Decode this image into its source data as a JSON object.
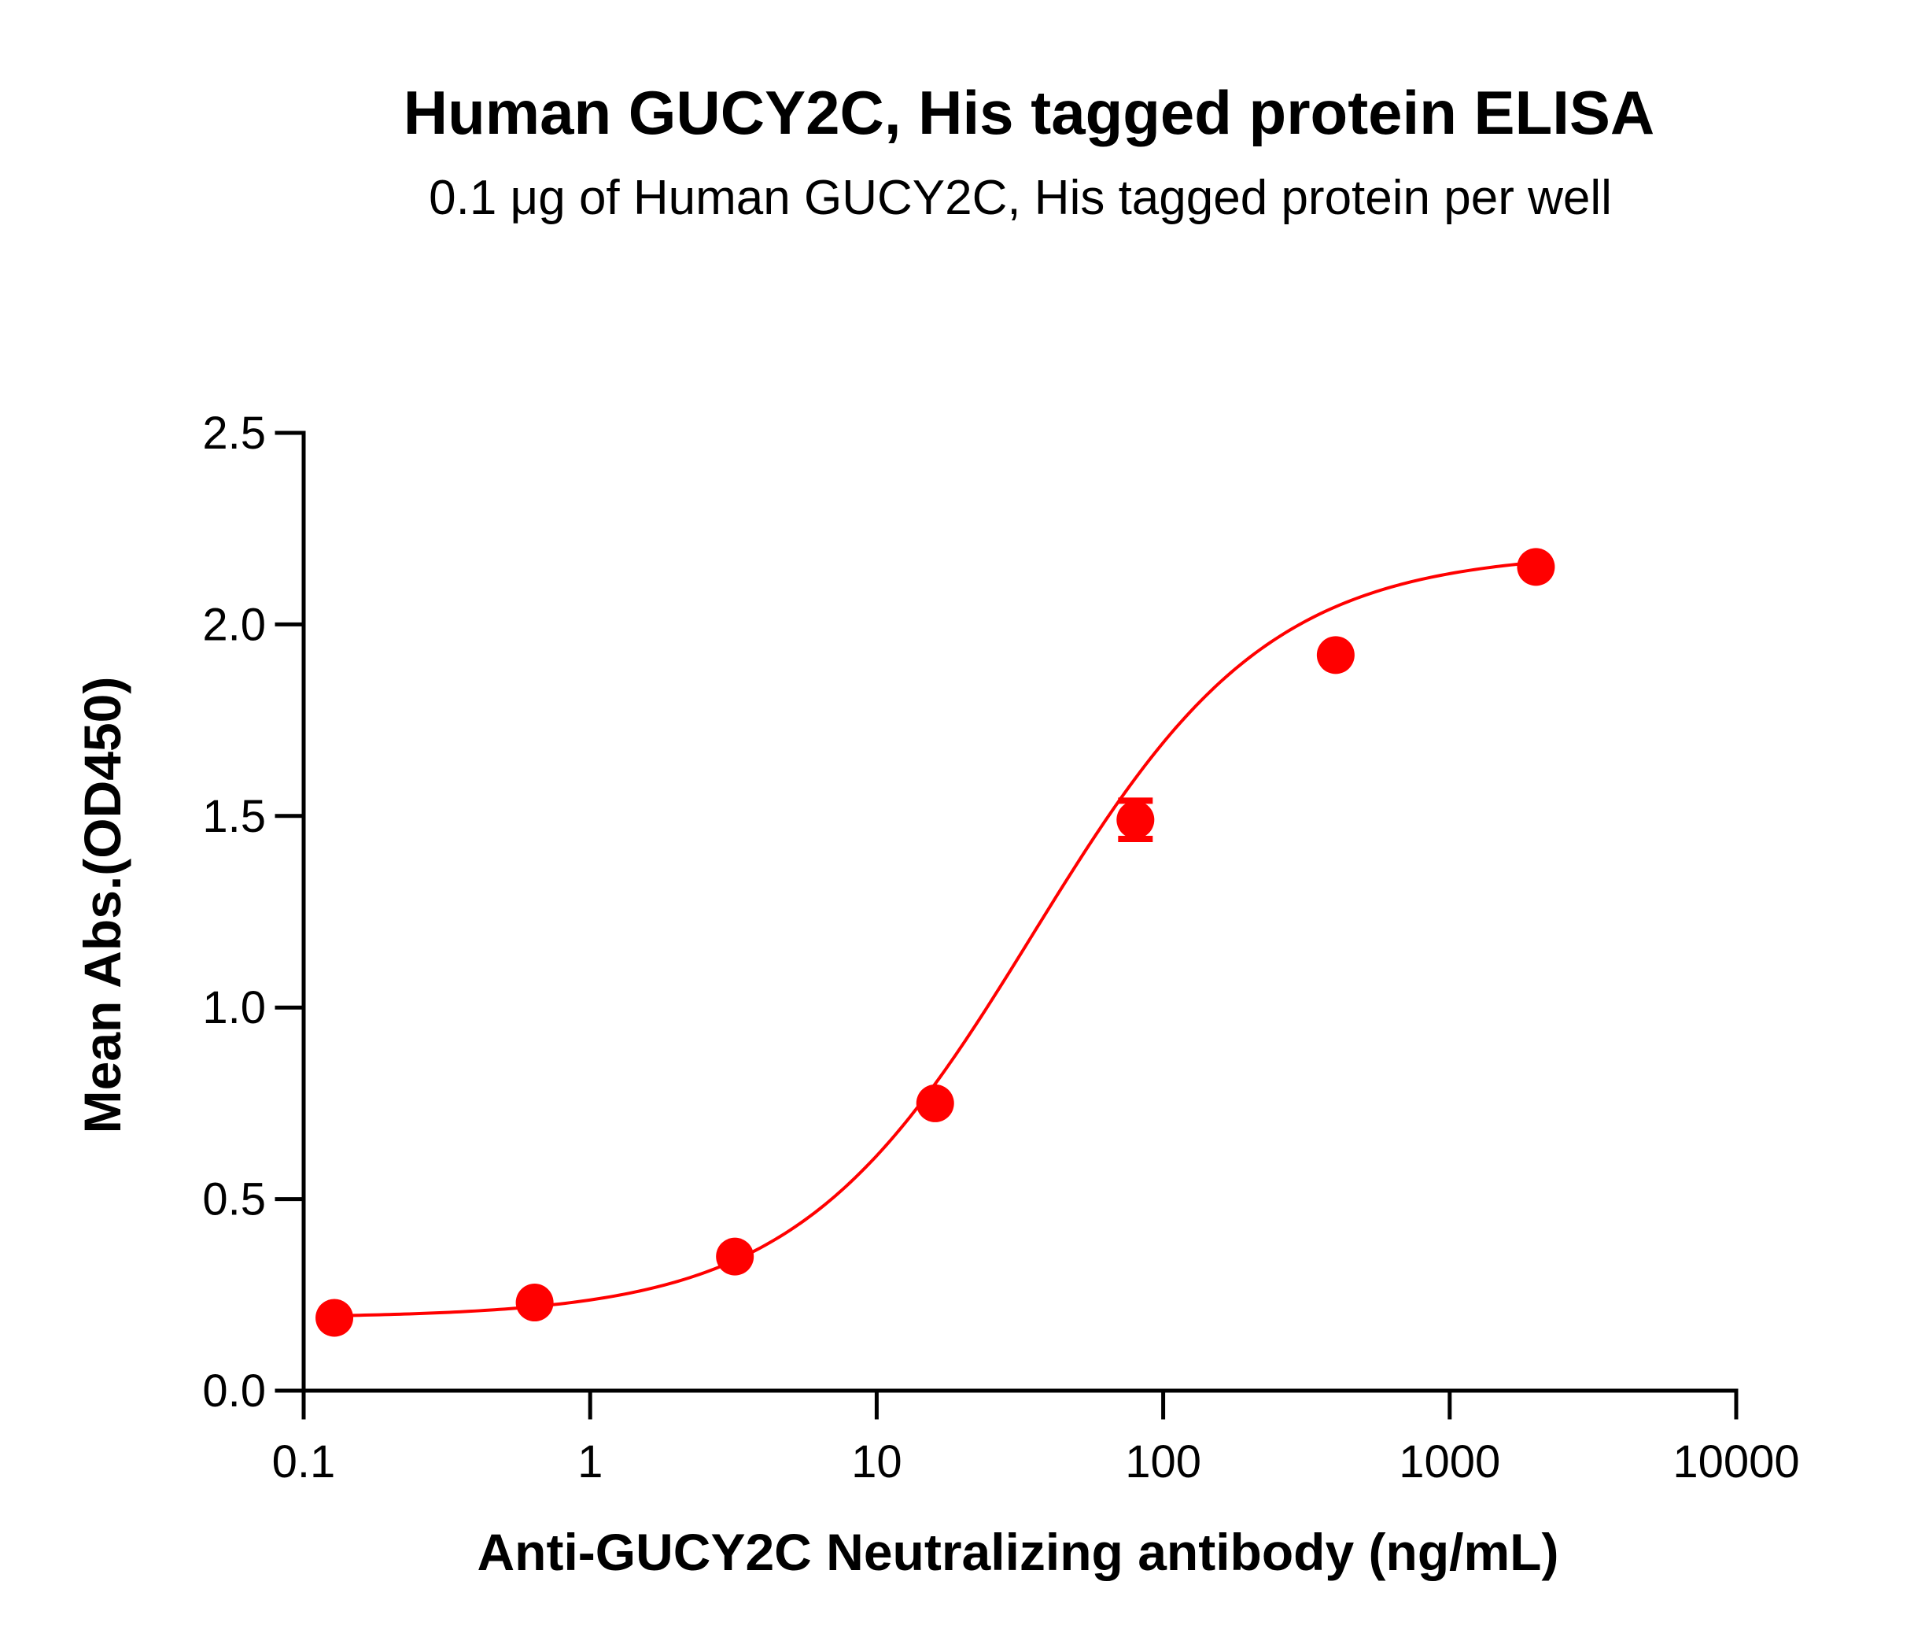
{
  "chart_data": {
    "type": "scatter",
    "title": "Human GUCY2C, His tagged protein ELISA",
    "subtitle": "0.1 μg of Human GUCY2C, His tagged protein per well",
    "xlabel": "Anti-GUCY2C Neutralizing antibody (ng/mL)",
    "ylabel": "Mean Abs.(OD450)",
    "x_scale": "log",
    "xlim": [
      0.1,
      10000
    ],
    "ylim": [
      0,
      2.5
    ],
    "x_ticks": [
      0.1,
      1,
      10,
      100,
      1000,
      10000
    ],
    "x_tick_labels": [
      "0.1",
      "1",
      "10",
      "100",
      "1000",
      "10000"
    ],
    "y_ticks": [
      0,
      0.5,
      1,
      1.5,
      2,
      2.5
    ],
    "y_tick_labels": [
      "0.0",
      "0.5",
      "1.0",
      "1.5",
      "2.0",
      "2.5"
    ],
    "grid": false,
    "series": [
      {
        "color": "#ff0000",
        "x": [
          0.128,
          0.64,
          3.2,
          16,
          80,
          400,
          2000
        ],
        "y": [
          0.19,
          0.23,
          0.35,
          0.75,
          1.49,
          1.92,
          2.15
        ],
        "error": [
          0,
          0,
          0,
          0,
          0.05,
          0,
          0
        ],
        "fit": {
          "model": "4PL",
          "bottom": 0.19,
          "top": 2.19,
          "ec50": 35,
          "hill": 1.05
        }
      }
    ]
  }
}
